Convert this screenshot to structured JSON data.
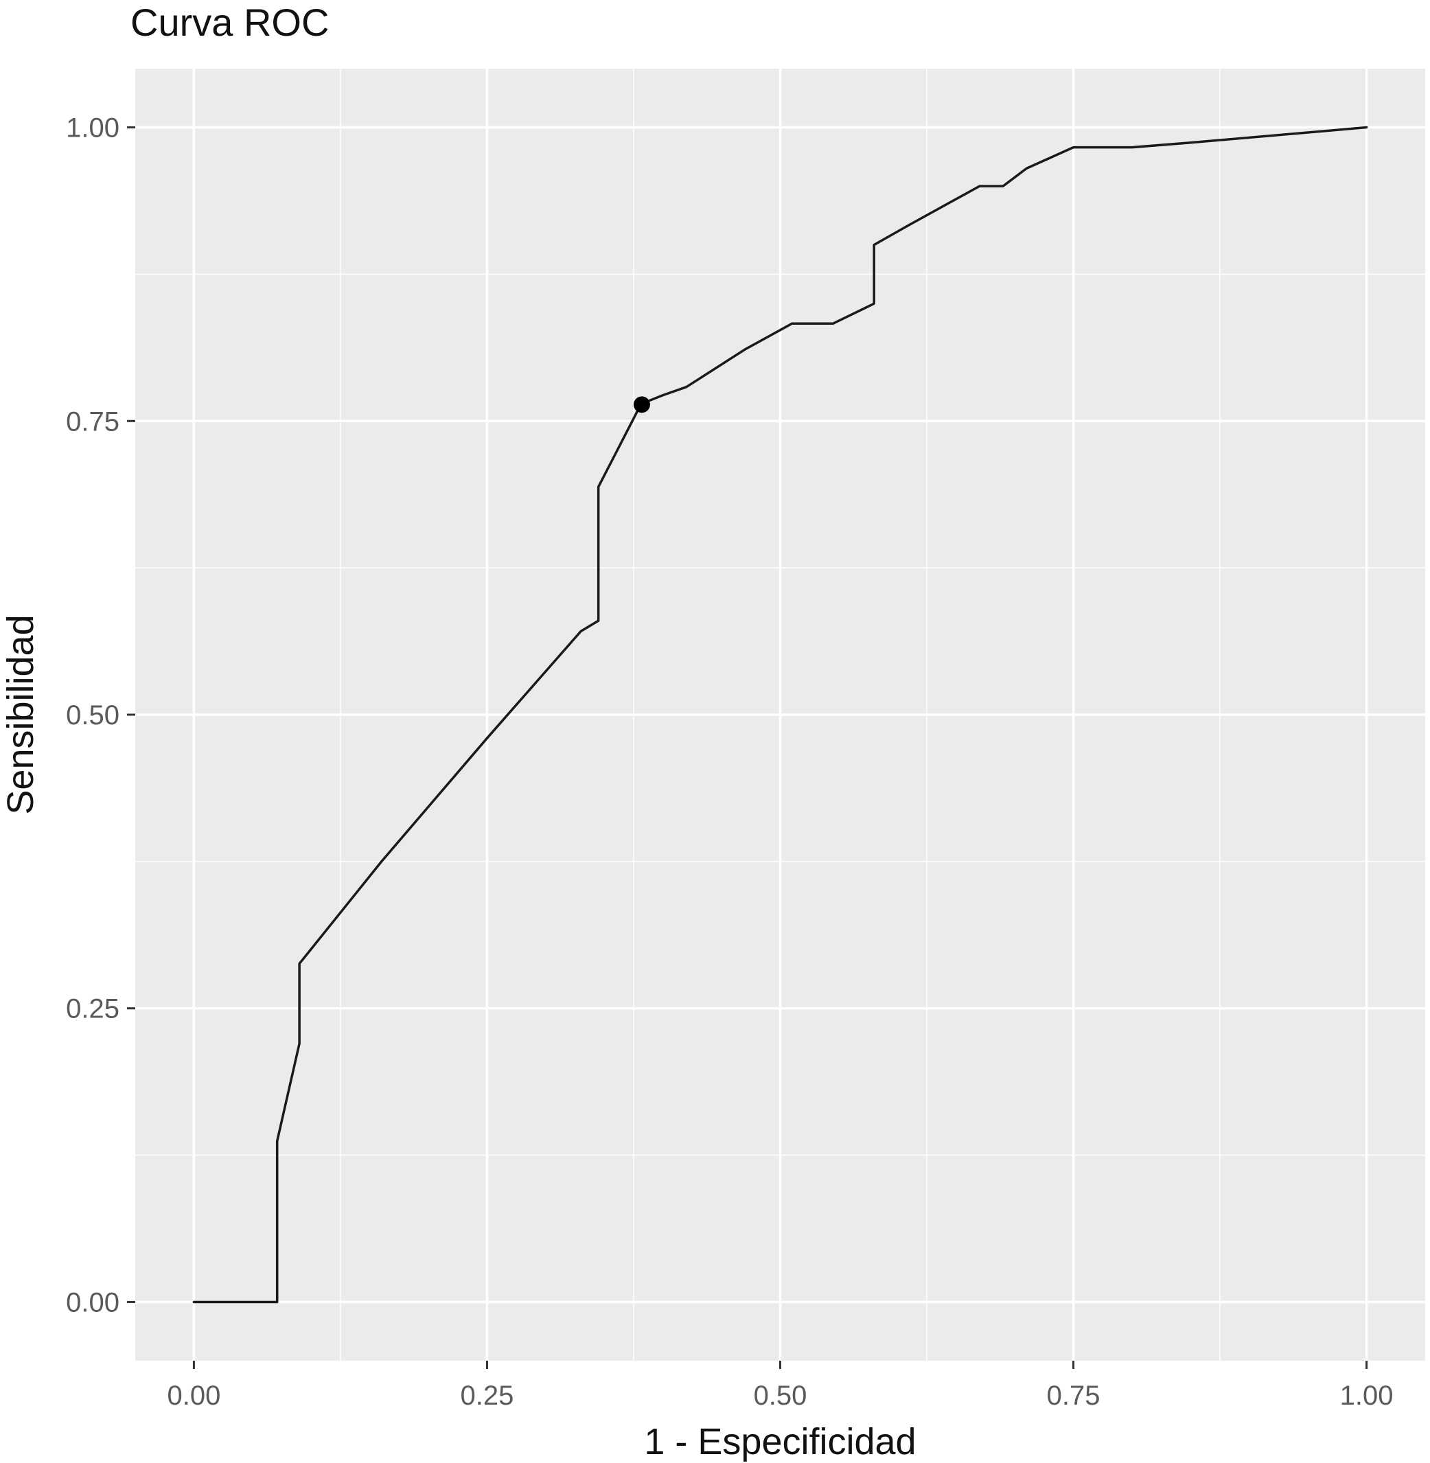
{
  "chart_data": {
    "type": "line",
    "title": "Curva ROC",
    "xlabel": "1 - Especificidad",
    "ylabel": "Sensibilidad",
    "xlim": [
      -0.05,
      1.05
    ],
    "ylim": [
      -0.05,
      1.05
    ],
    "x_ticks": [
      0,
      0.25,
      0.5,
      0.75,
      1
    ],
    "x_tick_labels": [
      "0.00",
      "0.25",
      "0.50",
      "0.75",
      "1.00"
    ],
    "y_ticks": [
      0,
      0.25,
      0.5,
      0.75,
      1
    ],
    "y_tick_labels": [
      "0.00",
      "0.25",
      "0.50",
      "0.75",
      "1.00"
    ],
    "minor_ticks": [
      0.125,
      0.375,
      0.625,
      0.875
    ],
    "grid": true,
    "legend": "none",
    "colors": {
      "panel": "#ebebeb",
      "grid": "#ffffff",
      "line": "#1a1a1a"
    },
    "series": [
      {
        "x": [
          0,
          0.071,
          0.071,
          0.09,
          0.09,
          0.09,
          0.16,
          0.25,
          0.33,
          0.345,
          0.345,
          0.378,
          0.38,
          0.4,
          0.42,
          0.47,
          0.51,
          0.545,
          0.58,
          0.58,
          0.61,
          0.67,
          0.69,
          0.71,
          0.75,
          0.8,
          0.85,
          1
        ],
        "y": [
          0,
          0,
          0.137,
          0.22,
          0.26,
          0.288,
          0.375,
          0.48,
          0.571,
          0.58,
          0.694,
          0.758,
          0.764,
          0.772,
          0.779,
          0.811,
          0.833,
          0.833,
          0.85,
          0.9,
          0.917,
          0.95,
          0.95,
          0.965,
          0.983,
          0.983,
          0.987,
          1
        ]
      }
    ],
    "highlight_point": {
      "x": 0.382,
      "y": 0.764
    }
  }
}
